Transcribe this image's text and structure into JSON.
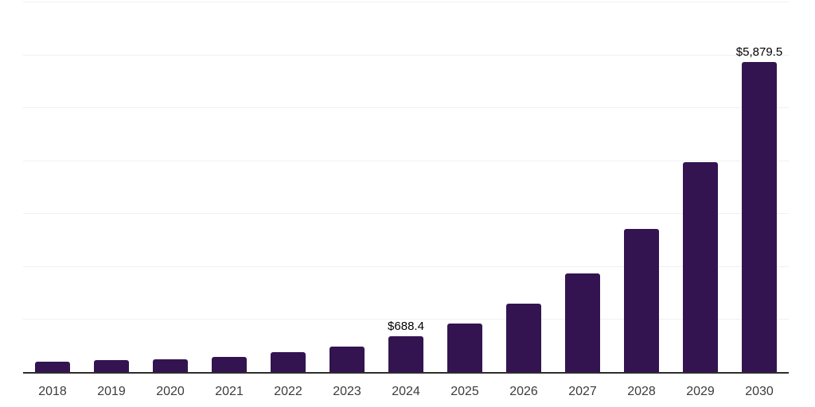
{
  "chart_data": {
    "type": "bar",
    "title": "",
    "xlabel": "",
    "ylabel": "",
    "categories": [
      "2018",
      "2019",
      "2020",
      "2021",
      "2022",
      "2023",
      "2024",
      "2025",
      "2026",
      "2027",
      "2028",
      "2029",
      "2030"
    ],
    "values": [
      210,
      245,
      260,
      295,
      390,
      495,
      688.4,
      925,
      1310,
      1880,
      2715,
      3985,
      5879.5
    ],
    "data_labels": [
      "",
      "",
      "",
      "",
      "",
      "",
      "$688.4",
      "",
      "",
      "",
      "",
      "",
      "$5,879.5"
    ],
    "ylim": [
      0,
      7000
    ],
    "gridline_interval": 1000,
    "grid": "horizontal",
    "legend": "none",
    "colors": {
      "bar": "#331450",
      "axis_line": "#2d2d2d",
      "gridline": "#f0f0f0",
      "data_label": "#000000",
      "tick_label": "#3c3c3c",
      "background": "#ffffff"
    }
  }
}
